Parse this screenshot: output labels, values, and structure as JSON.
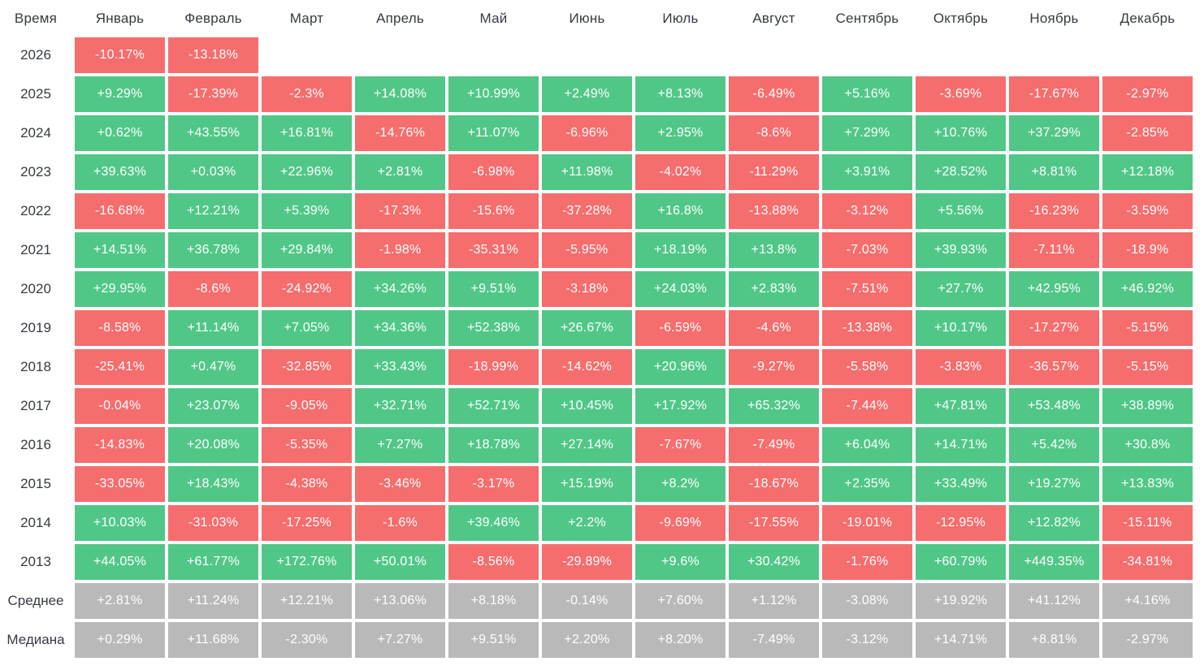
{
  "colors": {
    "positive": "#50c787",
    "negative": "#f66d6d",
    "summary": "#b9b9b9",
    "cell_text": "#ffffff",
    "label_text": "#363a43"
  },
  "chart_data": {
    "type": "heatmap",
    "corner_label": "Время",
    "columns": [
      "Январь",
      "Февраль",
      "Март",
      "Апрель",
      "Май",
      "Июнь",
      "Июль",
      "Август",
      "Сентябрь",
      "Октябрь",
      "Ноябрь",
      "Декабрь"
    ],
    "value_format": "signed percent, green positive / red negative, gray for summary rows",
    "rows": [
      {
        "label": "2026",
        "kind": "year",
        "values": [
          "-10.17%",
          "-13.18%",
          null,
          null,
          null,
          null,
          null,
          null,
          null,
          null,
          null,
          null
        ]
      },
      {
        "label": "2025",
        "kind": "year",
        "values": [
          "+9.29%",
          "-17.39%",
          "-2.3%",
          "+14.08%",
          "+10.99%",
          "+2.49%",
          "+8.13%",
          "-6.49%",
          "+5.16%",
          "-3.69%",
          "-17.67%",
          "-2.97%"
        ]
      },
      {
        "label": "2024",
        "kind": "year",
        "values": [
          "+0.62%",
          "+43.55%",
          "+16.81%",
          "-14.76%",
          "+11.07%",
          "-6.96%",
          "+2.95%",
          "-8.6%",
          "+7.29%",
          "+10.76%",
          "+37.29%",
          "-2.85%"
        ]
      },
      {
        "label": "2023",
        "kind": "year",
        "values": [
          "+39.63%",
          "+0.03%",
          "+22.96%",
          "+2.81%",
          "-6.98%",
          "+11.98%",
          "-4.02%",
          "-11.29%",
          "+3.91%",
          "+28.52%",
          "+8.81%",
          "+12.18%"
        ]
      },
      {
        "label": "2022",
        "kind": "year",
        "values": [
          "-16.68%",
          "+12.21%",
          "+5.39%",
          "-17.3%",
          "-15.6%",
          "-37.28%",
          "+16.8%",
          "-13.88%",
          "-3.12%",
          "+5.56%",
          "-16.23%",
          "-3.59%"
        ]
      },
      {
        "label": "2021",
        "kind": "year",
        "values": [
          "+14.51%",
          "+36.78%",
          "+29.84%",
          "-1.98%",
          "-35.31%",
          "-5.95%",
          "+18.19%",
          "+13.8%",
          "-7.03%",
          "+39.93%",
          "-7.11%",
          "-18.9%"
        ]
      },
      {
        "label": "2020",
        "kind": "year",
        "values": [
          "+29.95%",
          "-8.6%",
          "-24.92%",
          "+34.26%",
          "+9.51%",
          "-3.18%",
          "+24.03%",
          "+2.83%",
          "-7.51%",
          "+27.7%",
          "+42.95%",
          "+46.92%"
        ]
      },
      {
        "label": "2019",
        "kind": "year",
        "values": [
          "-8.58%",
          "+11.14%",
          "+7.05%",
          "+34.36%",
          "+52.38%",
          "+26.67%",
          "-6.59%",
          "-4.6%",
          "-13.38%",
          "+10.17%",
          "-17.27%",
          "-5.15%"
        ]
      },
      {
        "label": "2018",
        "kind": "year",
        "values": [
          "-25.41%",
          "+0.47%",
          "-32.85%",
          "+33.43%",
          "-18.99%",
          "-14.62%",
          "+20.96%",
          "-9.27%",
          "-5.58%",
          "-3.83%",
          "-36.57%",
          "-5.15%"
        ]
      },
      {
        "label": "2017",
        "kind": "year",
        "values": [
          "-0.04%",
          "+23.07%",
          "-9.05%",
          "+32.71%",
          "+52.71%",
          "+10.45%",
          "+17.92%",
          "+65.32%",
          "-7.44%",
          "+47.81%",
          "+53.48%",
          "+38.89%"
        ]
      },
      {
        "label": "2016",
        "kind": "year",
        "values": [
          "-14.83%",
          "+20.08%",
          "-5.35%",
          "+7.27%",
          "+18.78%",
          "+27.14%",
          "-7.67%",
          "-7.49%",
          "+6.04%",
          "+14.71%",
          "+5.42%",
          "+30.8%"
        ]
      },
      {
        "label": "2015",
        "kind": "year",
        "values": [
          "-33.05%",
          "+18.43%",
          "-4.38%",
          "-3.46%",
          "-3.17%",
          "+15.19%",
          "+8.2%",
          "-18.67%",
          "+2.35%",
          "+33.49%",
          "+19.27%",
          "+13.83%"
        ]
      },
      {
        "label": "2014",
        "kind": "year",
        "values": [
          "+10.03%",
          "-31.03%",
          "-17.25%",
          "-1.6%",
          "+39.46%",
          "+2.2%",
          "-9.69%",
          "-17.55%",
          "-19.01%",
          "-12.95%",
          "+12.82%",
          "-15.11%"
        ]
      },
      {
        "label": "2013",
        "kind": "year",
        "values": [
          "+44.05%",
          "+61.77%",
          "+172.76%",
          "+50.01%",
          "-8.56%",
          "-29.89%",
          "+9.6%",
          "+30.42%",
          "-1.76%",
          "+60.79%",
          "+449.35%",
          "-34.81%"
        ]
      },
      {
        "label": "Среднее",
        "kind": "summary",
        "values": [
          "+2.81%",
          "+11.24%",
          "+12.21%",
          "+13.06%",
          "+8.18%",
          "-0.14%",
          "+7.60%",
          "+1.12%",
          "-3.08%",
          "+19.92%",
          "+41.12%",
          "+4.16%"
        ]
      },
      {
        "label": "Медиана",
        "kind": "summary",
        "values": [
          "+0.29%",
          "+11.68%",
          "-2.30%",
          "+7.27%",
          "+9.51%",
          "+2.20%",
          "+8.20%",
          "-7.49%",
          "-3.12%",
          "+14.71%",
          "+8.81%",
          "-2.97%"
        ]
      }
    ]
  }
}
